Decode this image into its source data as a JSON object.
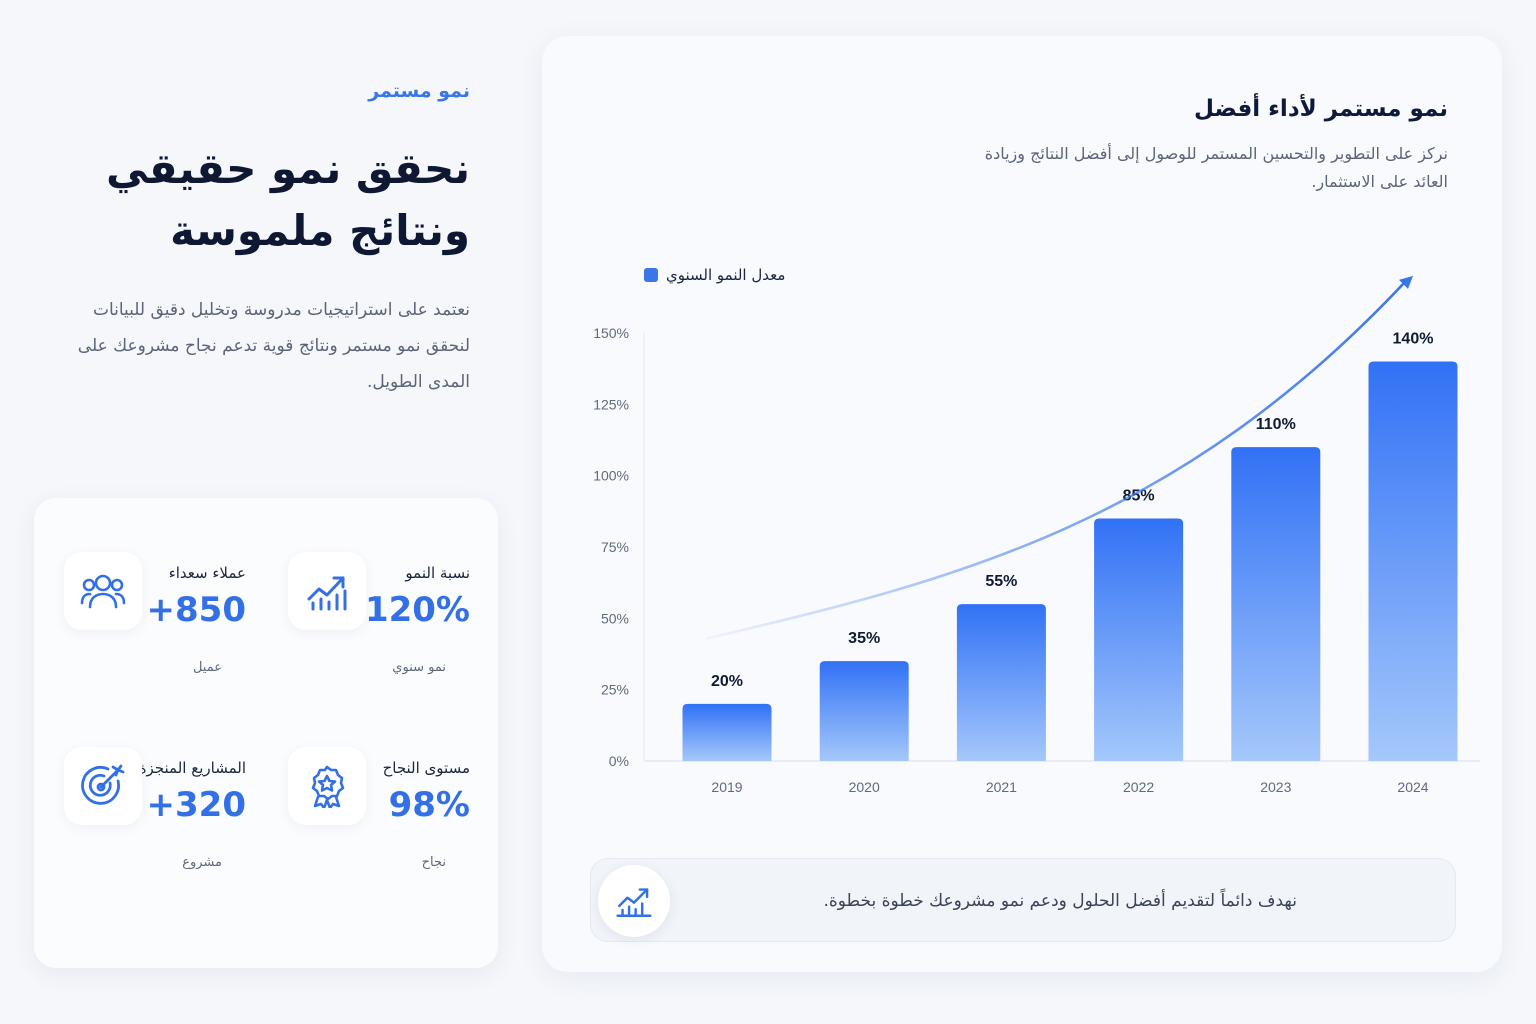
{
  "intro": {
    "eyebrow": "نمو مستمر",
    "headline_line1": "نحقق نمو حقيقي",
    "headline_line2": "ونتائج ملموسة",
    "lead": "نعتمد على استراتيجيات مدروسة وتخليل دقيق للبيانات لنحقق نمو مستمر ونتائج قوية تدعم نجاح مشروعك على المدى الطويل."
  },
  "stats": [
    {
      "label": "نسبة النمو",
      "value": "+120%",
      "sub": "نمو سنوي",
      "icon": "growth-chart-icon"
    },
    {
      "label": "عملاء سعداء",
      "value": "+850",
      "sub": "عميل",
      "icon": "users-icon"
    },
    {
      "label": "مستوى النجاح",
      "value": "98%",
      "sub": "نجاح",
      "icon": "award-badge-icon"
    },
    {
      "label": "المشاريع المنجزة",
      "value": "+320",
      "sub": "مشروع",
      "icon": "target-icon"
    }
  ],
  "card": {
    "title": "نمو مستمر لأداء أفضل",
    "description": "نركز على التطوير والتحسين المستمر للوصول إلى أفضل النتائج وزيادة العائد على الاستثمار.",
    "footer_text": "نهدف دائماً لتقديم أفضل الحلول ودعم نمو مشروعك خطوة بخطوة.",
    "footer_icon": "growth-chart-icon"
  },
  "chart_data": {
    "type": "bar",
    "categories": [
      "2019",
      "2020",
      "2021",
      "2022",
      "2023",
      "2024"
    ],
    "series": [
      {
        "name": "معدل النمو السنوي",
        "values": [
          20,
          35,
          55,
          85,
          110,
          140
        ]
      }
    ],
    "data_labels": [
      "20%",
      "35%",
      "55%",
      "85%",
      "110%",
      "140%"
    ],
    "y_ticks": [
      "0%",
      "25%",
      "50%",
      "75%",
      "100%",
      "125%",
      "150%"
    ],
    "ylim": [
      0,
      150
    ],
    "grid": false,
    "legend_position": "top-left",
    "trend_arrow": true,
    "colors": {
      "bar_top": "#3171f5",
      "bar_bottom": "#a5c8fb",
      "accent": "#3b76e8"
    }
  }
}
